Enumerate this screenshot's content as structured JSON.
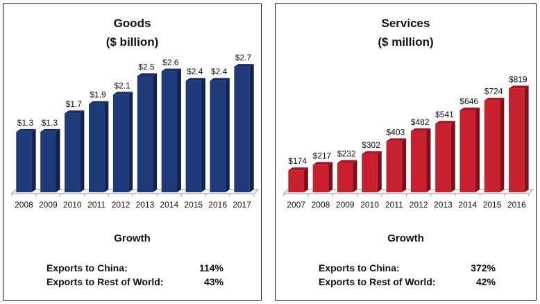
{
  "chart_data": [
    {
      "type": "bar",
      "title": "Goods",
      "subtitle": "($ billion)",
      "categories": [
        "2008",
        "2009",
        "2010",
        "2011",
        "2012",
        "2013",
        "2014",
        "2015",
        "2016",
        "2017"
      ],
      "values": [
        1.3,
        1.3,
        1.7,
        1.9,
        2.1,
        2.5,
        2.6,
        2.4,
        2.4,
        2.7
      ],
      "labels": [
        "$1.3",
        "$1.3",
        "$1.7",
        "$1.9",
        "$2.1",
        "$2.5",
        "$2.6",
        "$2.4",
        "$2.4",
        "$2.7"
      ],
      "xlabel": "",
      "ylabel": "",
      "ylim": [
        0,
        3.0
      ],
      "grid": false,
      "legend": "none",
      "color": "#1F3A7A"
    },
    {
      "type": "bar",
      "title": "Services",
      "subtitle": "($ million)",
      "categories": [
        "2007",
        "2008",
        "2009",
        "2010",
        "2011",
        "2012",
        "2013",
        "2014",
        "2015",
        "2016"
      ],
      "values": [
        174,
        217,
        232,
        302,
        403,
        482,
        541,
        646,
        724,
        819
      ],
      "labels": [
        "$174",
        "$217",
        "$232",
        "$302",
        "$403",
        "$482",
        "$541",
        "$646",
        "$724",
        "$819"
      ],
      "xlabel": "",
      "ylabel": "",
      "ylim": [
        0,
        1100
      ],
      "grid": false,
      "legend": "none",
      "color": "#C8202F"
    }
  ],
  "panels": [
    {
      "title": "Goods",
      "subtitle": "($ billion)",
      "growth_title": "Growth",
      "growth": [
        {
          "label": "Exports to China:",
          "value": "114%"
        },
        {
          "label": "Exports to Rest of World:",
          "value": "43%"
        }
      ]
    },
    {
      "title": "Services",
      "subtitle": "($ million)",
      "growth_title": "Growth",
      "growth": [
        {
          "label": "Exports to China:",
          "value": "372%"
        },
        {
          "label": "Exports to Rest of World:",
          "value": "42%"
        }
      ]
    }
  ]
}
